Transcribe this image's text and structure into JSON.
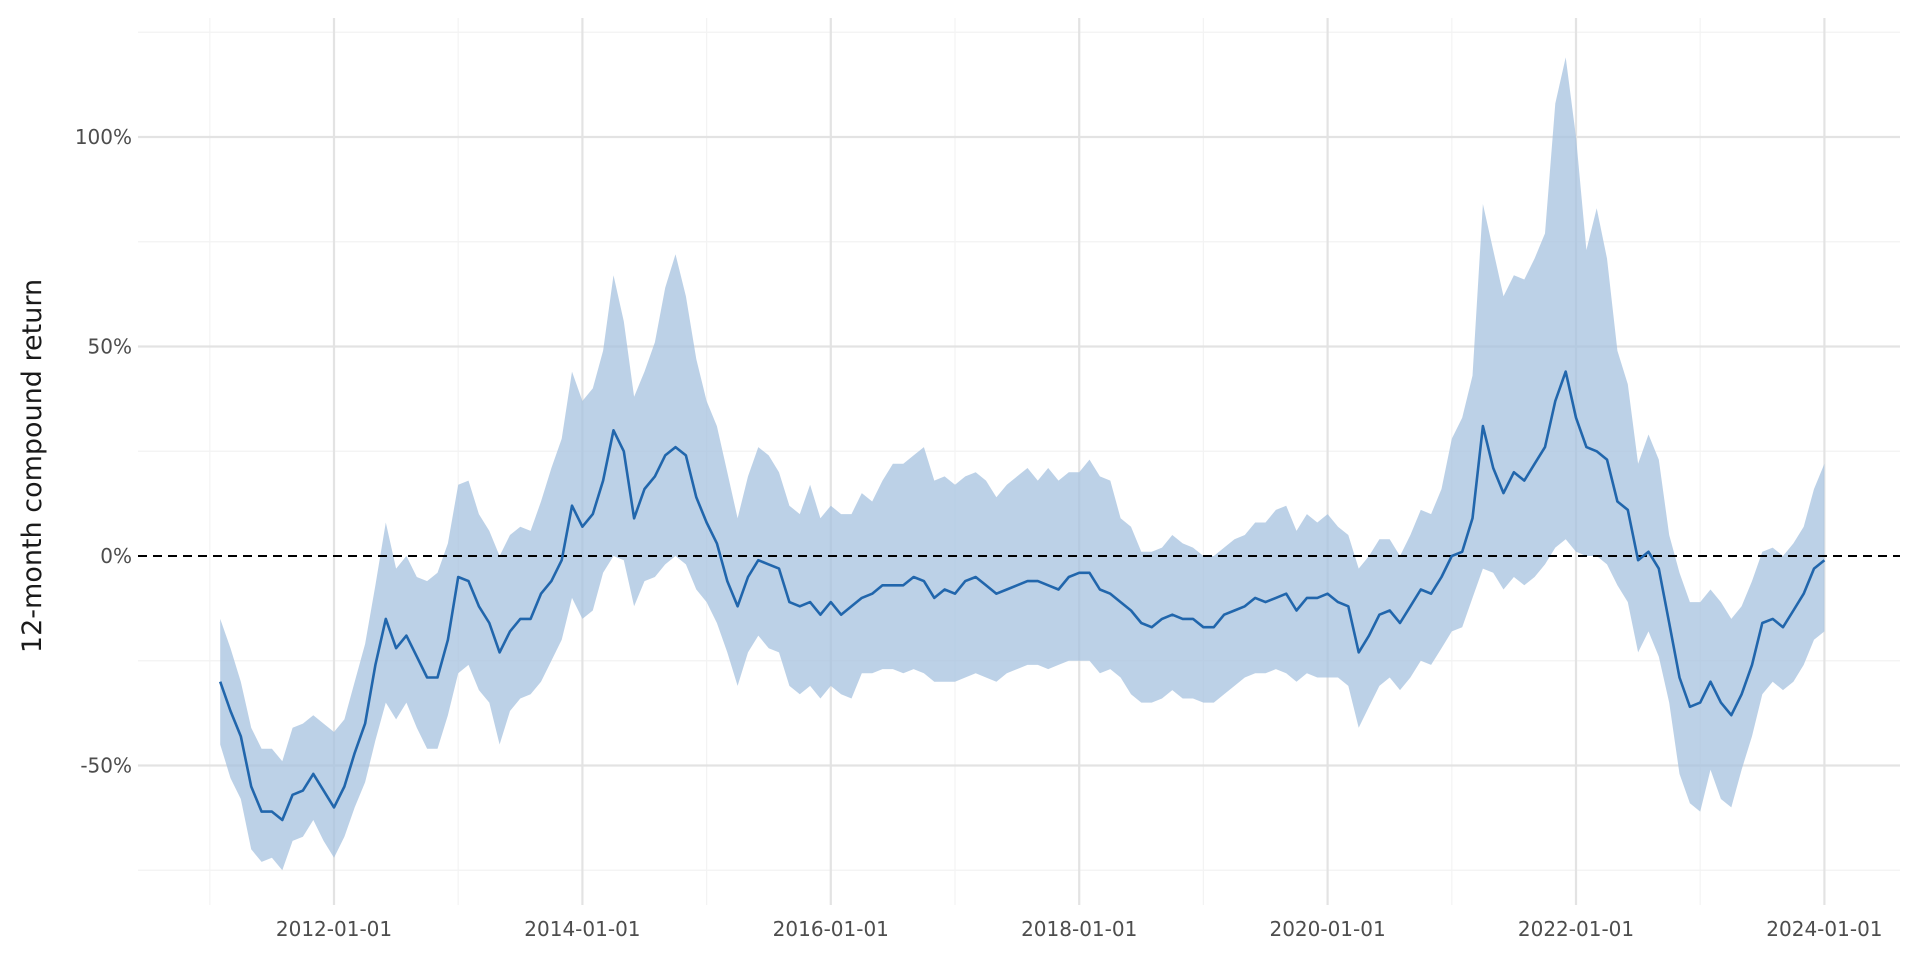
{
  "chart_data": {
    "type": "line",
    "title": "",
    "xlabel": "",
    "ylabel": "12-month compound return",
    "ylim": [
      -80,
      120
    ],
    "y_ticks": [
      -50,
      0,
      50,
      100
    ],
    "y_tick_labels": [
      "-50%",
      "0%",
      "50%",
      "100%"
    ],
    "x_tick_labels": [
      "2012-01-01",
      "2014-01-01",
      "2016-01-01",
      "2018-01-01",
      "2020-01-01",
      "2022-01-01",
      "2024-01-01"
    ],
    "x_start": "2011-02-01",
    "x_end": "2024-01-01",
    "frequency": "monthly",
    "grid": true,
    "legend": "none",
    "reference_line": {
      "y": 0,
      "style": "dashed",
      "color": "#000000"
    },
    "colors": {
      "line": "#2166ac",
      "band": "#a6c1df"
    },
    "series": [
      {
        "name": "mean",
        "values": [
          -30,
          -37,
          -43,
          -55,
          -61,
          -61,
          -63,
          -57,
          -56,
          -52,
          -56,
          -60,
          -55,
          -47,
          -40,
          -26,
          -15,
          -22,
          -19,
          -24,
          -29,
          -29,
          -20,
          -5,
          -6,
          -12,
          -16,
          -23,
          -18,
          -15,
          -15,
          -9,
          -6,
          -1,
          12,
          7,
          10,
          18,
          30,
          25,
          9,
          16,
          19,
          24,
          26,
          24,
          14,
          8,
          3,
          -6,
          -12,
          -5,
          -1,
          -2,
          -3,
          -11,
          -12,
          -11,
          -14,
          -11,
          -14,
          -12,
          -10,
          -9,
          -7,
          -7,
          -7,
          -5,
          -6,
          -10,
          -8,
          -9,
          -6,
          -5,
          -7,
          -9,
          -8,
          -7,
          -6,
          -6,
          -7,
          -8,
          -5,
          -4,
          -4,
          -8,
          -9,
          -11,
          -13,
          -16,
          -17,
          -15,
          -14,
          -15,
          -15,
          -17,
          -17,
          -14,
          -13,
          -12,
          -10,
          -11,
          -10,
          -9,
          -13,
          -10,
          -10,
          -9,
          -11,
          -12,
          -23,
          -19,
          -14,
          -13,
          -16,
          -12,
          -8,
          -9,
          -5,
          0,
          1,
          9,
          31,
          21,
          15,
          20,
          18,
          22,
          26,
          37,
          44,
          33,
          26,
          25,
          23,
          13,
          11,
          -1,
          1,
          -3,
          -16,
          -29,
          -36,
          -35,
          -30,
          -35,
          -38,
          -33,
          -26,
          -16,
          -15,
          -17,
          -13,
          -9,
          -3,
          -1
        ]
      },
      {
        "name": "upper",
        "values": [
          -15,
          -22,
          -30,
          -41,
          -46,
          -46,
          -49,
          -41,
          -40,
          -38,
          -40,
          -42,
          -39,
          -30,
          -21,
          -7,
          8,
          -3,
          0,
          -5,
          -6,
          -4,
          3,
          17,
          18,
          10,
          6,
          0,
          5,
          7,
          6,
          13,
          21,
          28,
          44,
          37,
          40,
          49,
          67,
          56,
          38,
          44,
          51,
          64,
          72,
          62,
          47,
          37,
          31,
          20,
          9,
          19,
          26,
          24,
          20,
          12,
          10,
          17,
          9,
          12,
          10,
          10,
          15,
          13,
          18,
          22,
          22,
          24,
          26,
          18,
          19,
          17,
          19,
          20,
          18,
          14,
          17,
          19,
          21,
          18,
          21,
          18,
          20,
          20,
          23,
          19,
          18,
          9,
          7,
          1,
          1,
          2,
          5,
          3,
          2,
          0,
          0,
          2,
          4,
          5,
          8,
          8,
          11,
          12,
          6,
          10,
          8,
          10,
          7,
          5,
          -3,
          0,
          4,
          4,
          0,
          5,
          11,
          10,
          16,
          28,
          33,
          43,
          84,
          73,
          62,
          67,
          66,
          71,
          77,
          108,
          119,
          100,
          73,
          83,
          71,
          49,
          41,
          22,
          29,
          23,
          5,
          -4,
          -11,
          -11,
          -8,
          -11,
          -15,
          -12,
          -6,
          1,
          2,
          0,
          3,
          7,
          16,
          22
        ]
      },
      {
        "name": "lower",
        "values": [
          -45,
          -53,
          -58,
          -70,
          -73,
          -72,
          -75,
          -68,
          -67,
          -63,
          -68,
          -72,
          -67,
          -60,
          -54,
          -44,
          -35,
          -39,
          -35,
          -41,
          -46,
          -46,
          -38,
          -28,
          -26,
          -32,
          -35,
          -45,
          -37,
          -34,
          -33,
          -30,
          -25,
          -20,
          -10,
          -15,
          -13,
          -4,
          0,
          -1,
          -12,
          -6,
          -5,
          -2,
          0,
          -2,
          -8,
          -11,
          -16,
          -23,
          -31,
          -23,
          -19,
          -22,
          -23,
          -31,
          -33,
          -31,
          -34,
          -31,
          -33,
          -34,
          -28,
          -28,
          -27,
          -27,
          -28,
          -27,
          -28,
          -30,
          -30,
          -30,
          -29,
          -28,
          -29,
          -30,
          -28,
          -27,
          -26,
          -26,
          -27,
          -26,
          -25,
          -25,
          -25,
          -28,
          -27,
          -29,
          -33,
          -35,
          -35,
          -34,
          -32,
          -34,
          -34,
          -35,
          -35,
          -33,
          -31,
          -29,
          -28,
          -28,
          -27,
          -28,
          -30,
          -28,
          -29,
          -29,
          -29,
          -31,
          -41,
          -36,
          -31,
          -29,
          -32,
          -29,
          -25,
          -26,
          -22,
          -18,
          -17,
          -10,
          -3,
          -4,
          -8,
          -5,
          -7,
          -5,
          -2,
          2,
          4,
          1,
          0,
          0,
          -2,
          -7,
          -11,
          -23,
          -18,
          -24,
          -35,
          -52,
          -59,
          -61,
          -51,
          -58,
          -60,
          -51,
          -43,
          -33,
          -30,
          -32,
          -30,
          -26,
          -20,
          -18
        ]
      }
    ]
  }
}
